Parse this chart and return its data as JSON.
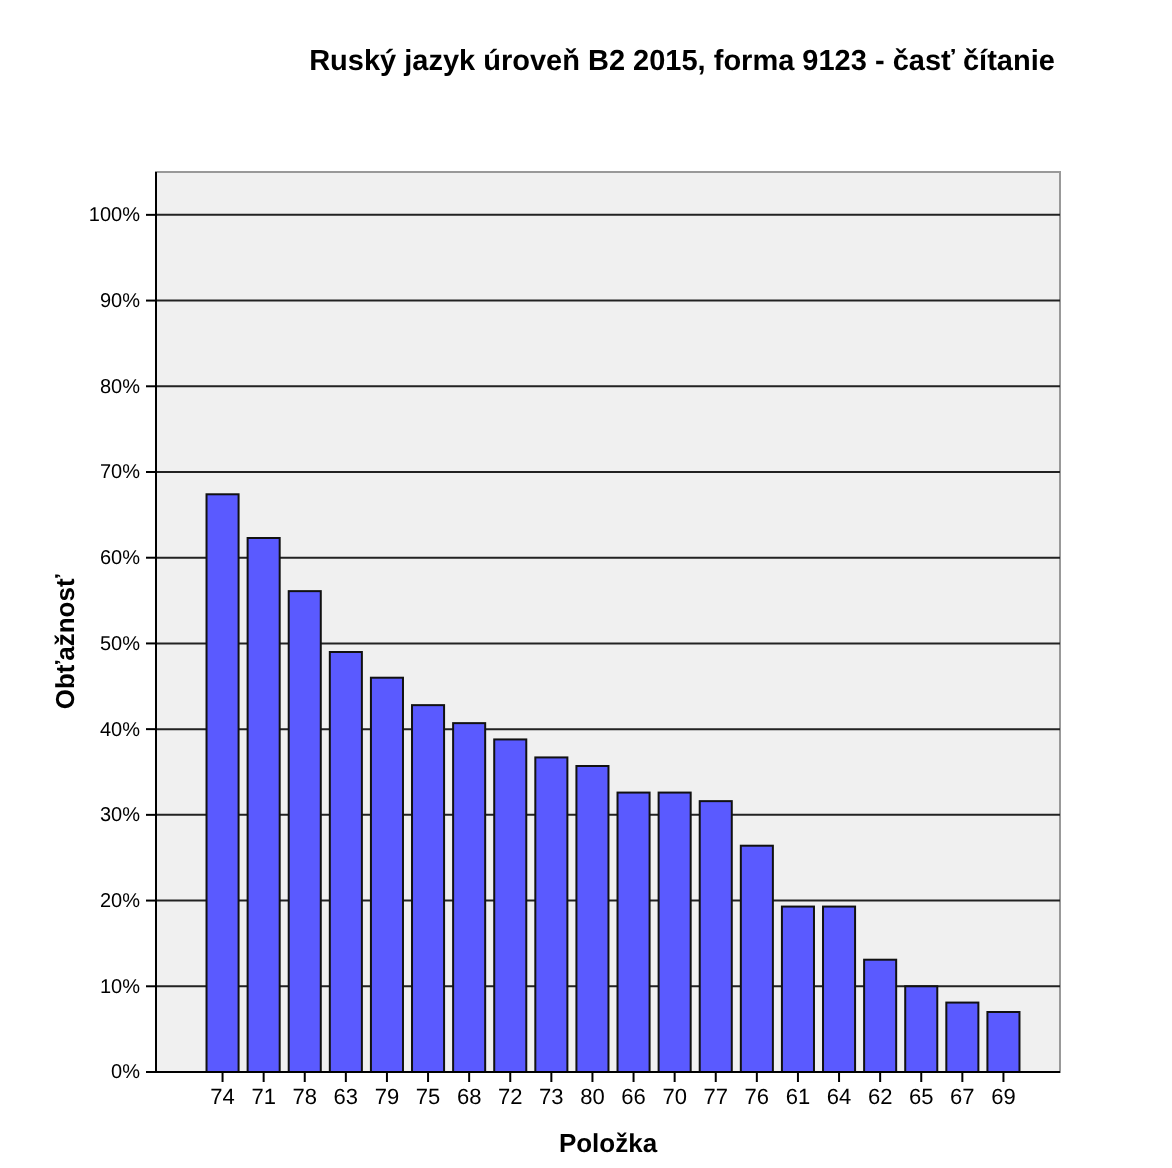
{
  "chart_data": {
    "type": "bar",
    "title": "Ruský jazyk úroveň B2 2015, forma 9123 - časť čítanie",
    "xlabel": "Položka",
    "ylabel": "Obťažnosť",
    "categories": [
      "74",
      "71",
      "78",
      "63",
      "79",
      "75",
      "68",
      "72",
      "73",
      "80",
      "66",
      "70",
      "77",
      "76",
      "61",
      "64",
      "62",
      "65",
      "67",
      "69"
    ],
    "values": [
      67.4,
      62.3,
      56.1,
      49.0,
      46.0,
      42.8,
      40.7,
      38.8,
      36.7,
      35.7,
      32.6,
      32.6,
      31.6,
      26.4,
      19.3,
      19.3,
      13.1,
      10.0,
      8.1,
      7.0
    ],
    "color": "#5a5aff",
    "ylim": [
      0,
      105
    ],
    "yticks": [
      {
        "value": 0,
        "label": "0%"
      },
      {
        "value": 10,
        "label": "10%"
      },
      {
        "value": 20,
        "label": "20%"
      },
      {
        "value": 30,
        "label": "30%"
      },
      {
        "value": 40,
        "label": "40%"
      },
      {
        "value": 50,
        "label": "50%"
      },
      {
        "value": 60,
        "label": "60%"
      },
      {
        "value": 70,
        "label": "70%"
      },
      {
        "value": 80,
        "label": "80%"
      },
      {
        "value": 90,
        "label": "90%"
      },
      {
        "value": 100,
        "label": "100%"
      }
    ],
    "grid": "y"
  }
}
